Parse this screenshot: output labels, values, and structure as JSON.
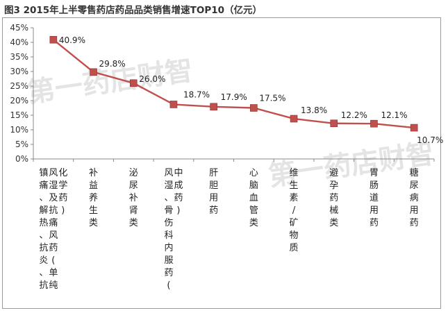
{
  "title": "图3 2015年上半零售药店药品品类销售增速TOP10（亿元）",
  "watermark": "第一药店财智",
  "chart_data": {
    "type": "line",
    "title": "图3 2015年上半零售药店药品品类销售增速TOP10（亿元）",
    "categories": [
      "镇痛、解热、抗炎、抗风湿及抗痛风药(单纯化学药)",
      "补益养生类",
      "泌尿补肾类",
      "风湿、骨伤科内服药(中成药)",
      "肝胆用药",
      "心脑血管类",
      "维生素/矿物质",
      "避孕药械类",
      "胃肠道用药",
      "糖尿病用药"
    ],
    "values": [
      40.9,
      29.8,
      26.0,
      18.7,
      17.9,
      17.5,
      13.8,
      12.2,
      12.1,
      10.7
    ],
    "data_labels": [
      "40.9%",
      "29.8%",
      "26.0%",
      "18.7%",
      "17.9%",
      "17.5%",
      "13.8%",
      "12.2%",
      "12.1%",
      "10.7%"
    ],
    "yticks": [
      "0%",
      "5%",
      "10%",
      "15%",
      "20%",
      "25%",
      "30%",
      "35%",
      "40%",
      "45%"
    ],
    "ylim": [
      0,
      45
    ],
    "grid": false,
    "line_color": "#c0504d",
    "marker_color": "#c0504d"
  }
}
